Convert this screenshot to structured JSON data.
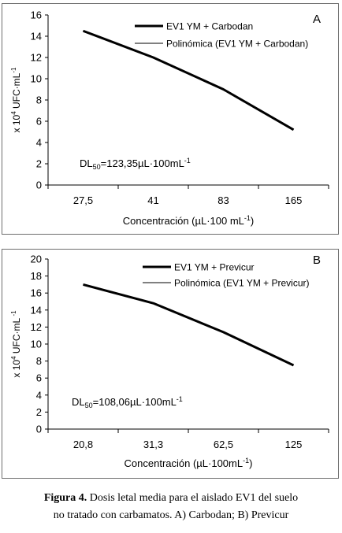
{
  "chart_data": [
    {
      "type": "line",
      "panel_label": "A",
      "categories": [
        "27,5",
        "41",
        "83",
        "165"
      ],
      "series": [
        {
          "name": "EV1 YM + Carbodan",
          "values": [
            14.5,
            12.0,
            9.0,
            5.2
          ],
          "color": "#000000",
          "width": "thick"
        },
        {
          "name": "Polinómica (EV1 YM + Carbodan)",
          "values": [
            14.5,
            12.0,
            9.0,
            5.2
          ],
          "color": "#000000",
          "width": "thin"
        }
      ],
      "xlabel": "Concentración (µL·100  mL",
      "xlabel_sup": "-1",
      "xlabel_tail": ")",
      "ylabel": "x 10",
      "ylabel_sup1": "4",
      "ylabel_mid": " UFC·mL",
      "ylabel_sup2": "-1",
      "ylim": [
        0,
        16
      ],
      "yticks": [
        "0",
        "2",
        "4",
        "6",
        "8",
        "10",
        "12",
        "14",
        "16"
      ],
      "ld_prefix": "DL",
      "ld_sub": "50",
      "ld_value": "=123,35µL·100mL",
      "ld_sup": "-1",
      "legend_position": "top-right",
      "grid": false
    },
    {
      "type": "line",
      "panel_label": "B",
      "categories": [
        "20,8",
        "31,3",
        "62,5",
        "125"
      ],
      "series": [
        {
          "name": "EV1 YM + Previcur",
          "values": [
            17.0,
            14.8,
            11.4,
            7.5
          ],
          "color": "#000000",
          "width": "thick"
        },
        {
          "name": "Polinómica (EV1 YM + Previcur)",
          "values": [
            17.0,
            14.8,
            11.4,
            7.5
          ],
          "color": "#000000",
          "width": "thin"
        }
      ],
      "xlabel": "Concentración (µL·100mL",
      "xlabel_sup": "-1",
      "xlabel_tail": ")",
      "ylabel": "x 10",
      "ylabel_sup1": "4",
      "ylabel_mid": " UFC·mL",
      "ylabel_sup2": " -1",
      "ylim": [
        0,
        20
      ],
      "yticks": [
        "0",
        "2",
        "4",
        "6",
        "8",
        "10",
        "12",
        "14",
        "16",
        "18",
        "20"
      ],
      "ld_prefix": "DL",
      "ld_sub": "50",
      "ld_value": "=108,06µL·100mL",
      "ld_sup": "-1",
      "legend_position": "top-right",
      "grid": false
    }
  ],
  "caption": {
    "bold": "Figura 4.",
    "line1": " Dosis letal media para el aislado EV1 del suelo",
    "line2": "no tratado con carbamatos. A) Carbodan; B) Previcur"
  }
}
